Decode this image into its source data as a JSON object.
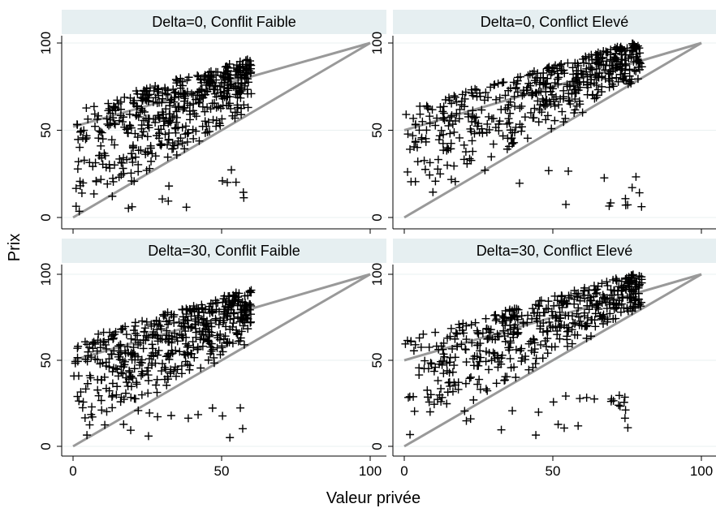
{
  "chart_data": {
    "type": "scatter",
    "xlabel": "Valeur privée",
    "ylabel": "Prix",
    "xlim": [
      0,
      100
    ],
    "ylim": [
      0,
      100
    ],
    "x_ticks": [
      "0",
      "50",
      "100"
    ],
    "y_ticks": [
      "0",
      "50",
      "100"
    ],
    "grid": true,
    "marker": "+",
    "colors": {
      "strip": "#e6eff1",
      "points": "#000000",
      "lines": "#999999",
      "grid": "#eaf0f1"
    },
    "panels": [
      {
        "title": "Delta=0, Conflit Faible",
        "value_max": 60,
        "lines": [
          {
            "x": [
              0,
              100
            ],
            "y": [
              52,
              100
            ]
          },
          {
            "x": [
              0,
              100
            ],
            "y": [
              0,
              100
            ]
          }
        ]
      },
      {
        "title": "Delta=0, Conflict Elevé",
        "value_max": 80,
        "lines": [
          {
            "x": [
              0,
              100
            ],
            "y": [
              50,
              100
            ]
          },
          {
            "x": [
              0,
              100
            ],
            "y": [
              0,
              100
            ]
          }
        ]
      },
      {
        "title": "Delta=30, Conflit Faible",
        "value_max": 60,
        "lines": [
          {
            "x": [
              0,
              100
            ],
            "y": [
              50,
              100
            ]
          },
          {
            "x": [
              0,
              100
            ],
            "y": [
              0,
              100
            ]
          }
        ]
      },
      {
        "title": "Delta=30, Conflict Elevé",
        "value_max": 80,
        "lines": [
          {
            "x": [
              0,
              100
            ],
            "y": [
              50,
              100
            ]
          },
          {
            "x": [
              0,
              100
            ],
            "y": [
              0,
              100
            ]
          }
        ]
      }
    ]
  }
}
